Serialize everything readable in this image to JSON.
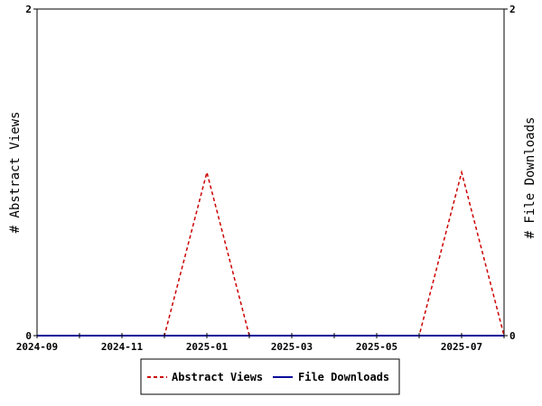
{
  "chart_data": {
    "type": "line",
    "x": [
      "2024-09",
      "2024-10",
      "2024-11",
      "2024-12",
      "2025-01",
      "2025-02",
      "2025-03",
      "2025-04",
      "2025-05",
      "2025-06",
      "2025-07",
      "2025-08"
    ],
    "xticks": [
      "2024-09",
      "2024-11",
      "2025-01",
      "2025-03",
      "2025-05",
      "2025-07"
    ],
    "ylabel": "# Abstract Views",
    "y2label": "# File Downloads",
    "ylim": [
      0,
      2
    ],
    "y2lim": [
      0,
      2
    ],
    "yticks": [
      "0",
      "2"
    ],
    "y2ticks": [
      "0",
      "2"
    ],
    "grid": false,
    "legend": "bottom-center",
    "series": [
      {
        "name": "Abstract Views",
        "axis": "left",
        "color": "#cc0000",
        "style": "dashed",
        "values": [
          0,
          0,
          0,
          0,
          1,
          0,
          0,
          0,
          0,
          0,
          1,
          0
        ]
      },
      {
        "name": "File Downloads",
        "axis": "right",
        "color": "#000099",
        "style": "solid",
        "values": [
          0,
          0,
          0,
          0,
          0,
          0,
          0,
          0,
          0,
          0,
          0,
          0
        ]
      }
    ]
  }
}
